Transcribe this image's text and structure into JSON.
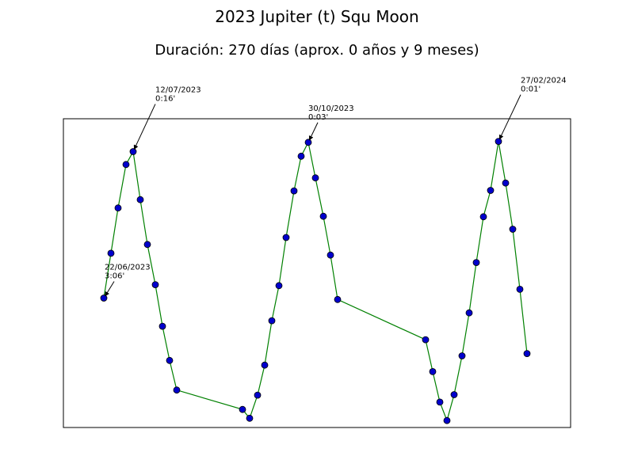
{
  "chart_data": {
    "type": "line",
    "title": "2023 Jupiter (t) Squ Moon",
    "subtitle": "Duración: 270 días (aprox. 0 años y 9 meses)",
    "xlabel": "",
    "ylabel": "",
    "grid": false,
    "axis_ticks_shown": false,
    "colors": {
      "line": "#008000",
      "marker_fill": "#0000cc",
      "marker_edge": "#000000",
      "frame": "#000000",
      "annotation_arrow": "#000000"
    },
    "series": [
      {
        "values": [
          3.1,
          4.07,
          5.05,
          5.99,
          6.27,
          5.23,
          4.26,
          3.39,
          2.49,
          1.75,
          1.11,
          0.69,
          0.5,
          1.0,
          1.65,
          2.61,
          3.37,
          4.41,
          5.42,
          6.17,
          6.47,
          5.7,
          4.87,
          4.03,
          3.07,
          2.2,
          1.51,
          0.85,
          0.45,
          1.01,
          1.85,
          2.78,
          3.87,
          4.86,
          5.43,
          6.49,
          5.59,
          4.59,
          3.29,
          1.9
        ]
      }
    ],
    "ylim": [
      0.3,
      6.98
    ],
    "annotations": [
      {
        "point_index": 0,
        "date": "22/06/2023",
        "value": "3:06'"
      },
      {
        "point_index": 4,
        "date": "12/07/2023",
        "value": "0:16'"
      },
      {
        "point_index": 20,
        "date": "30/10/2023",
        "value": "0:03'"
      },
      {
        "point_index": 35,
        "date": "27/02/2024",
        "value": "0:01'"
      }
    ]
  }
}
